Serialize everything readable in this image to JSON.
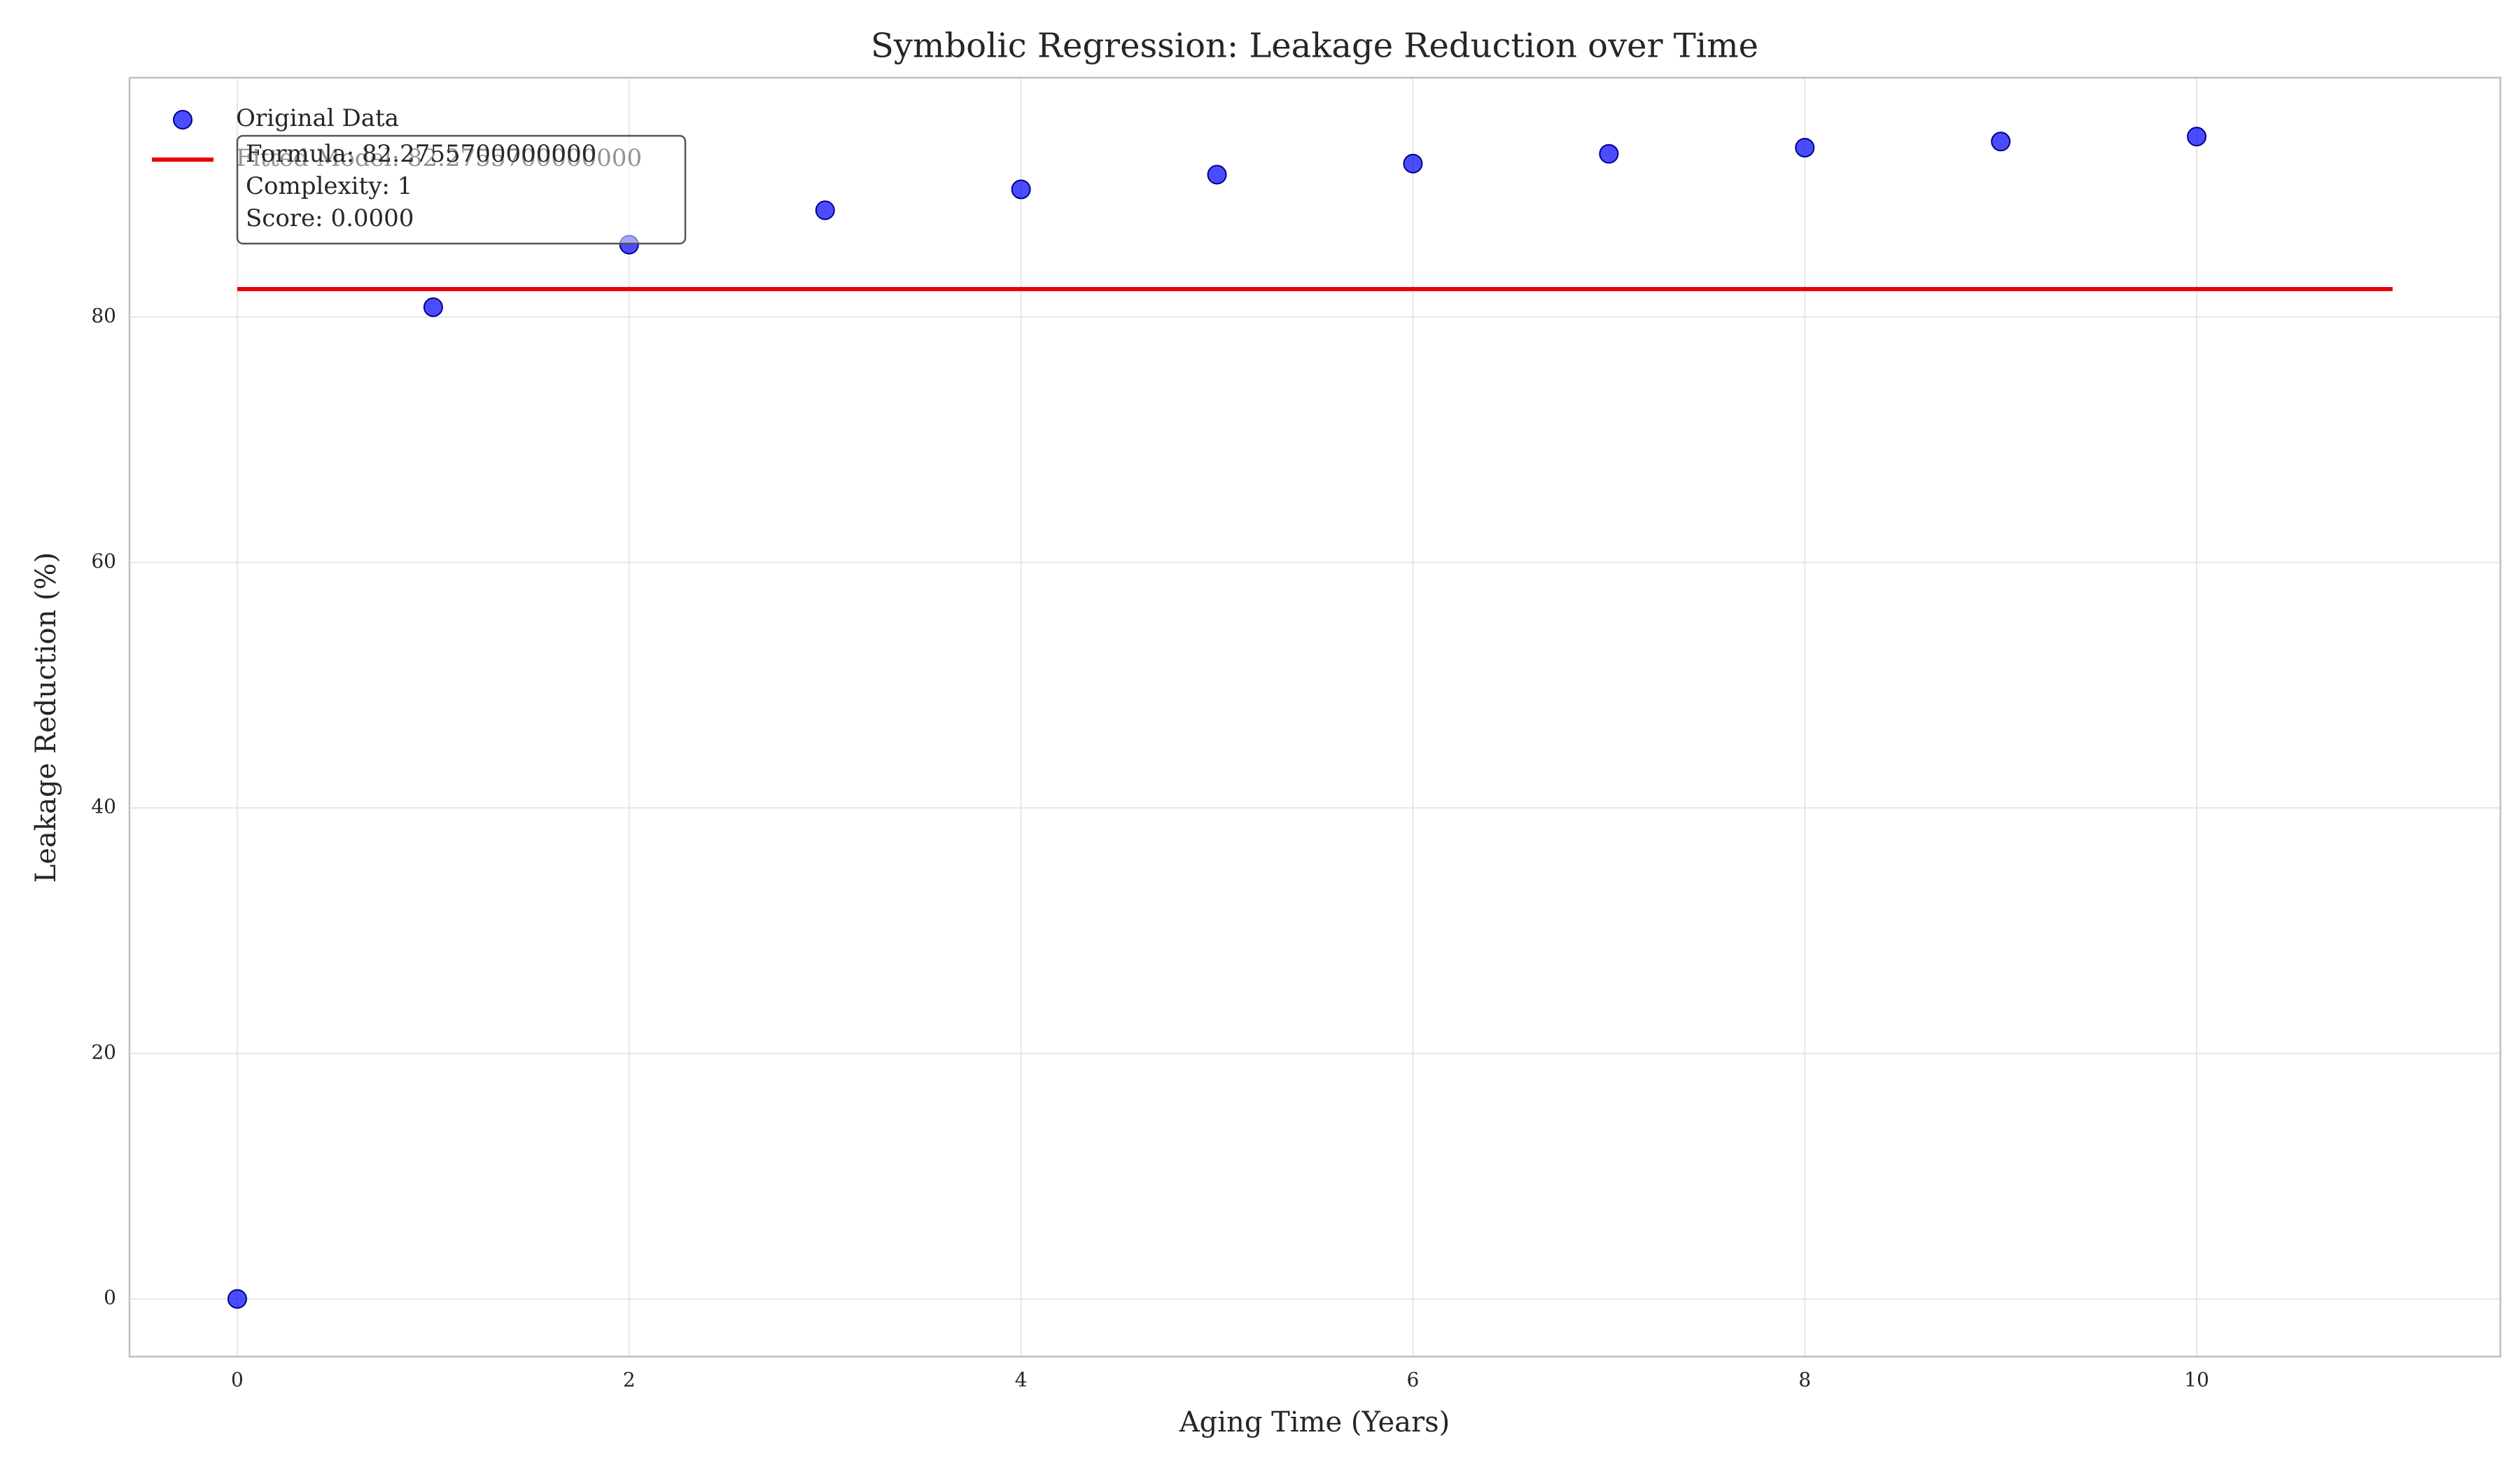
{
  "chart_data": {
    "type": "scatter",
    "title": "Symbolic Regression: Leakage Reduction over Time",
    "x_label": "Aging Time (Years)",
    "y_label": "Leakage Reduction (%)",
    "series": [
      {
        "name": "Original Data",
        "type": "scatter",
        "color": "#0000ff",
        "x": [
          0,
          1,
          2,
          3,
          4,
          5,
          6,
          7,
          8,
          9,
          10
        ],
        "values": [
          0,
          80.8,
          85.9,
          88.7,
          90.4,
          91.6,
          92.5,
          93.3,
          93.8,
          94.3,
          94.7
        ]
      },
      {
        "name": "Fitted Model: 82.2755700000000",
        "type": "line",
        "color": "#e8000b",
        "x": [
          0,
          11
        ],
        "values": [
          82.27557,
          82.27557
        ]
      }
    ],
    "annotation": [
      "Formula: 82.2755700000000",
      "Complexity: 1",
      "Score: 0.0000"
    ],
    "xlim": [
      -0.55,
      11.55
    ],
    "xticks": [
      0,
      2,
      4,
      6,
      8,
      10
    ],
    "ylim": [
      -4.7,
      99.5
    ],
    "yticks": [
      0,
      20,
      40,
      60,
      80
    ],
    "grid": true,
    "legend": "upper left"
  }
}
